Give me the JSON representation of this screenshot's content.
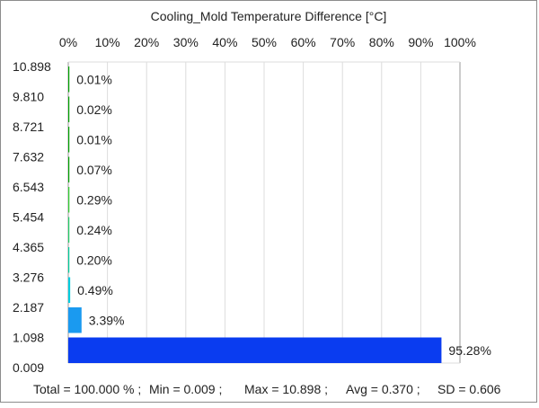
{
  "chart_data": {
    "type": "bar",
    "orientation": "horizontal",
    "title": "Cooling_Mold Temperature Difference [°C]",
    "x_tick_labels": [
      "0%",
      "10%",
      "20%",
      "30%",
      "40%",
      "50%",
      "60%",
      "70%",
      "80%",
      "90%",
      "100%"
    ],
    "xlim": [
      0,
      100
    ],
    "y_tick_labels": [
      "10.898",
      "9.810",
      "8.721",
      "7.632",
      "6.543",
      "5.454",
      "4.365",
      "3.276",
      "2.187",
      "1.098",
      "0.009"
    ],
    "bins": [
      {
        "range": [
          9.81,
          10.898
        ],
        "value": 0.01,
        "label": "0.01%",
        "color": "#00a000"
      },
      {
        "range": [
          8.721,
          9.81
        ],
        "value": 0.02,
        "label": "0.02%",
        "color": "#00a000"
      },
      {
        "range": [
          7.632,
          8.721
        ],
        "value": 0.01,
        "label": "0.01%",
        "color": "#00a000"
      },
      {
        "range": [
          6.543,
          7.632
        ],
        "value": 0.07,
        "label": "0.07%",
        "color": "#00a000"
      },
      {
        "range": [
          5.454,
          6.543
        ],
        "value": 0.29,
        "label": "0.29%",
        "color": "#33cc33"
      },
      {
        "range": [
          4.365,
          5.454
        ],
        "value": 0.24,
        "label": "0.24%",
        "color": "#22cc66"
      },
      {
        "range": [
          3.276,
          4.365
        ],
        "value": 0.2,
        "label": "0.20%",
        "color": "#00cc99"
      },
      {
        "range": [
          2.187,
          3.276
        ],
        "value": 0.49,
        "label": "0.49%",
        "color": "#00ccdd"
      },
      {
        "range": [
          1.098,
          2.187
        ],
        "value": 3.39,
        "label": "3.39%",
        "color": "#1a9af0"
      },
      {
        "range": [
          0.009,
          1.098
        ],
        "value": 95.28,
        "label": "95.28%",
        "color": "#0a3cf0"
      }
    ],
    "grid": true,
    "legend": "none"
  },
  "footer": {
    "total": "Total = 100.000 % ;",
    "min": "Min = 0.009 ;",
    "max": "Max = 10.898 ;",
    "avg": "Avg = 0.370 ;",
    "sd": "SD = 0.606"
  }
}
